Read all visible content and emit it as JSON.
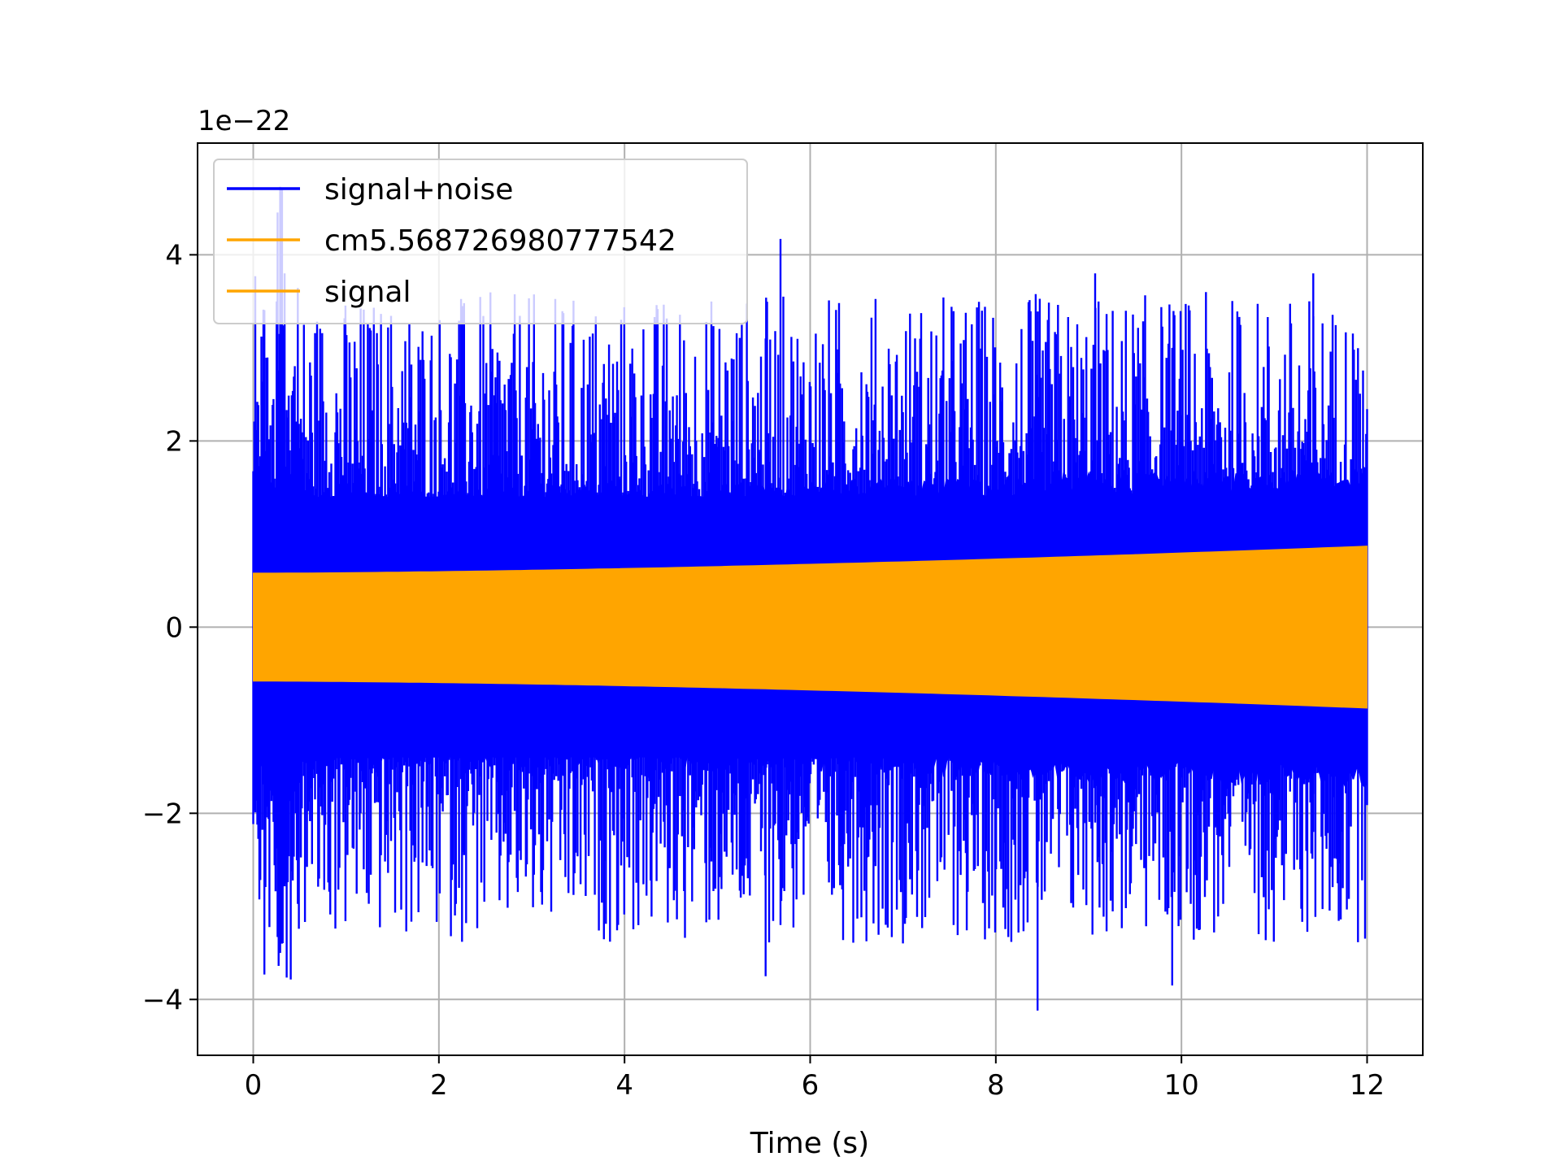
{
  "chart_data": {
    "type": "line",
    "xlabel": "Time (s)",
    "ylabel": "",
    "y_offset_label": "1e−22",
    "xlim": [
      -0.6,
      12.6
    ],
    "ylim": [
      -4.6,
      5.2
    ],
    "x_ticks": [
      0,
      2,
      4,
      6,
      8,
      10,
      12
    ],
    "x_tick_labels": [
      "0",
      "2",
      "4",
      "6",
      "8",
      "10",
      "12"
    ],
    "y_ticks": [
      -4,
      -2,
      0,
      2,
      4
    ],
    "y_tick_labels": [
      "−4",
      "−2",
      "0",
      "2",
      "4"
    ],
    "grid": true,
    "legend_position": "top-left",
    "series": [
      {
        "name": "signal+noise",
        "color": "#0000ff",
        "x_range": [
          0,
          12
        ],
        "band_lower_start": -1.3,
        "band_lower_end": -1.6,
        "band_upper_start": 1.3,
        "band_upper_end": 1.6,
        "peak_max": 4.73,
        "peak_min": -4.12
      },
      {
        "name": "cm5.568726980777542",
        "color": "#ffa500",
        "x_range": [
          0,
          12
        ],
        "envelope_start": 0.58,
        "envelope_end": 0.87
      },
      {
        "name": "signal",
        "color": "#ffa500",
        "x_range": [
          0,
          12
        ],
        "envelope_start": 0.58,
        "envelope_end": 0.87
      }
    ]
  }
}
